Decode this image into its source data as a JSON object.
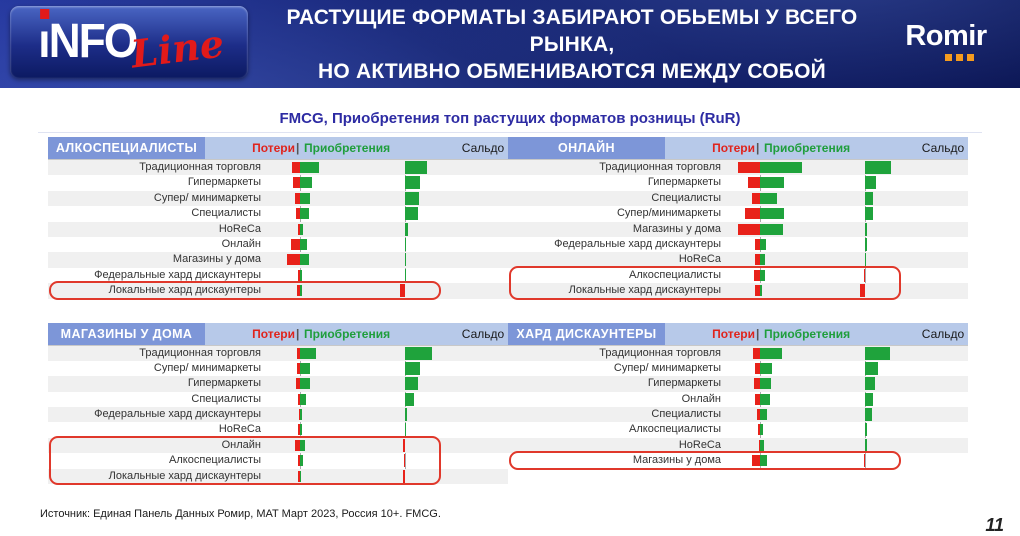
{
  "banner": {
    "title_line1": "РАСТУЩИЕ ФОРМАТЫ ЗАБИРАЮТ ОБЬЕМЫ У ВСЕГО РЫНКА,",
    "title_line2": "НО АКТИВНО ОБМЕНИВАЮТСЯ МЕЖДУ СОБОЙ",
    "logo_left_part1": "ıNFO",
    "logo_left_part2": "Line",
    "logo_right": "Romir"
  },
  "subtitle": "FMCG, Приобретения топ растущих форматов розницы (RuR)",
  "footer": {
    "source": "Источник: Единая Панель Данных Ромир, MAT Март 2023, Россия 10+. FMCG.",
    "page_number": "11"
  },
  "colors": {
    "banner_bg": "#13216f",
    "loss_red": "#e8221a",
    "gain_green": "#1fa33c",
    "panel_title_bg": "#7d96d8",
    "panel_strip_bg": "#b7c9e9",
    "highlight_border": "#e0382b",
    "romir_dot_orange": "#f59b1e"
  },
  "chart_data": [
    {
      "type": "bar",
      "title": "АЛКОСПЕЦИАЛИСТЫ",
      "legend_loss": "Потери",
      "legend_sep": "|",
      "legend_gain": "Приобретения",
      "legend_saldo": "Сальдо",
      "units": "relative magnitude (bar width px, no numeric labels shown)",
      "rows": [
        {
          "label": "Традиционная торговля",
          "loss": 8,
          "gain": 19,
          "saldo": 22
        },
        {
          "label": "Гипермаркеты",
          "loss": 7,
          "gain": 12,
          "saldo": 15
        },
        {
          "label": "Супер/ минимаркеты",
          "loss": 5,
          "gain": 10,
          "saldo": 14
        },
        {
          "label": "Специалисты",
          "loss": 4,
          "gain": 9,
          "saldo": 13
        },
        {
          "label": "HoReCa",
          "loss": 2,
          "gain": 3,
          "saldo": 3
        },
        {
          "label": "Онлайн",
          "loss": 9,
          "gain": 7,
          "saldo": 1
        },
        {
          "label": "Магазины у дома",
          "loss": 13,
          "gain": 9,
          "saldo": 1
        },
        {
          "label": "Федеральные хард дискаунтеры",
          "loss": 2,
          "gain": 2,
          "saldo": 1
        },
        {
          "label": "Локальные хард дискаунтеры",
          "loss": 3,
          "gain": 2,
          "saldo": -5
        }
      ],
      "highlight_rows": [
        "Локальные хард дискаунтеры"
      ]
    },
    {
      "type": "bar",
      "title": "ОНЛАЙН",
      "legend_loss": "Потери",
      "legend_sep": "|",
      "legend_gain": "Приобретения",
      "legend_saldo": "Сальдо",
      "units": "relative magnitude (bar width px, no numeric labels shown)",
      "rows": [
        {
          "label": "Традиционная торговля",
          "loss": 22,
          "gain": 42,
          "saldo": 26
        },
        {
          "label": "Гипермаркеты",
          "loss": 12,
          "gain": 24,
          "saldo": 11
        },
        {
          "label": "Специалисты",
          "loss": 8,
          "gain": 17,
          "saldo": 8
        },
        {
          "label": "Супер/минимаркеты",
          "loss": 15,
          "gain": 24,
          "saldo": 8
        },
        {
          "label": "Магазины у дома",
          "loss": 22,
          "gain": 23,
          "saldo": 2
        },
        {
          "label": "Федеральные хард дискаунтеры",
          "loss": 5,
          "gain": 6,
          "saldo": 2
        },
        {
          "label": "HoReCa",
          "loss": 5,
          "gain": 5,
          "saldo": 1
        },
        {
          "label": "Алкоспециалисты",
          "loss": 6,
          "gain": 5,
          "saldo": -1
        },
        {
          "label": "Локальные хард дискаунтеры",
          "loss": 5,
          "gain": 2,
          "saldo": -5
        }
      ],
      "highlight_rows": [
        "Алкоспециалисты",
        "Локальные хард дискаунтеры"
      ]
    },
    {
      "type": "bar",
      "title": "МАГАЗИНЫ У ДОМА",
      "legend_loss": "Потери",
      "legend_sep": "|",
      "legend_gain": "Приобретения",
      "legend_saldo": "Сальдо",
      "units": "relative magnitude (bar width px, no numeric labels shown)",
      "rows": [
        {
          "label": "Традиционная торговля",
          "loss": 3,
          "gain": 16,
          "saldo": 27
        },
        {
          "label": "Супер/ минимаркеты",
          "loss": 3,
          "gain": 10,
          "saldo": 15
        },
        {
          "label": "Гипермаркеты",
          "loss": 4,
          "gain": 10,
          "saldo": 13
        },
        {
          "label": "Специалисты",
          "loss": 2,
          "gain": 6,
          "saldo": 9
        },
        {
          "label": "Федеральные хард дискаунтеры",
          "loss": 1,
          "gain": 2,
          "saldo": 2
        },
        {
          "label": "HoReCa",
          "loss": 2,
          "gain": 2,
          "saldo": 1
        },
        {
          "label": "Онлайн",
          "loss": 5,
          "gain": 5,
          "saldo": -2
        },
        {
          "label": "Алкоспециалисты",
          "loss": 2,
          "gain": 3,
          "saldo": -1
        },
        {
          "label": "Локальные хард дискаунтеры",
          "loss": 2,
          "gain": 1,
          "saldo": -2
        }
      ],
      "highlight_rows": [
        "Онлайн",
        "Алкоспециалисты",
        "Локальные хард дискаунтеры"
      ]
    },
    {
      "type": "bar",
      "title": "ХАРД ДИСКАУНТЕРЫ",
      "legend_loss": "Потери",
      "legend_sep": "|",
      "legend_gain": "Приобретения",
      "legend_saldo": "Сальдо",
      "units": "relative magnitude (bar width px, no numeric labels shown)",
      "rows": [
        {
          "label": "Традиционная торговля",
          "loss": 7,
          "gain": 22,
          "saldo": 25
        },
        {
          "label": "Супер/ минимаркеты",
          "loss": 5,
          "gain": 12,
          "saldo": 13
        },
        {
          "label": "Гипермаркеты",
          "loss": 6,
          "gain": 11,
          "saldo": 10
        },
        {
          "label": "Онлайн",
          "loss": 5,
          "gain": 10,
          "saldo": 8
        },
        {
          "label": "Специалисты",
          "loss": 3,
          "gain": 7,
          "saldo": 7
        },
        {
          "label": "Алкоспециалисты",
          "loss": 2,
          "gain": 3,
          "saldo": 2
        },
        {
          "label": "HoReCa",
          "loss": 1,
          "gain": 4,
          "saldo": 2
        },
        {
          "label": "Магазины у дома",
          "loss": 8,
          "gain": 7,
          "saldo": -1
        }
      ],
      "highlight_rows": [
        "Магазины у дома"
      ]
    }
  ]
}
